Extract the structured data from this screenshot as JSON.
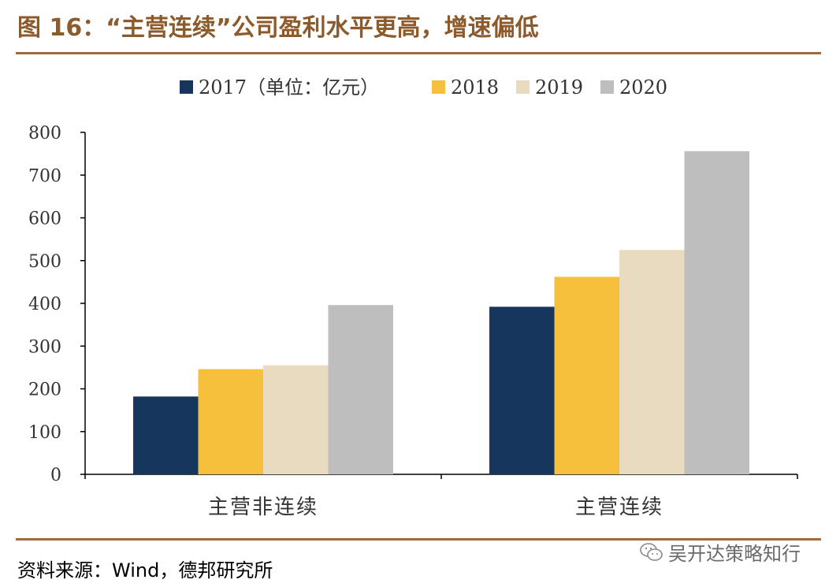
{
  "figure": {
    "title": "图 16：“主营连续”公司盈利水平更高，增速偏低",
    "source": "资料来源：Wind，德邦研究所",
    "watermark": "吴开达策略知行"
  },
  "colors": {
    "title": "#8c5a2b",
    "rule": "#9c6a3c",
    "axis": "#000000",
    "text": "#333333"
  },
  "chart_data": {
    "type": "bar",
    "title": "",
    "xlabel": "",
    "ylabel": "",
    "ylim": [
      0,
      800
    ],
    "yticks": [
      "0",
      "100",
      "200",
      "300",
      "400",
      "500",
      "600",
      "700",
      "800"
    ],
    "categories": [
      "主营非连续",
      "主营连续"
    ],
    "legend_position": "top-center",
    "series": [
      {
        "name": "2017（单位：亿元）",
        "color": "#17365d",
        "values": [
          182,
          392
        ]
      },
      {
        "name": "2018",
        "color": "#f6bf3c",
        "values": [
          246,
          462
        ]
      },
      {
        "name": "2019",
        "color": "#e9dbbf",
        "values": [
          255,
          525
        ]
      },
      {
        "name": "2020",
        "color": "#bebebe",
        "values": [
          396,
          756
        ]
      }
    ]
  }
}
